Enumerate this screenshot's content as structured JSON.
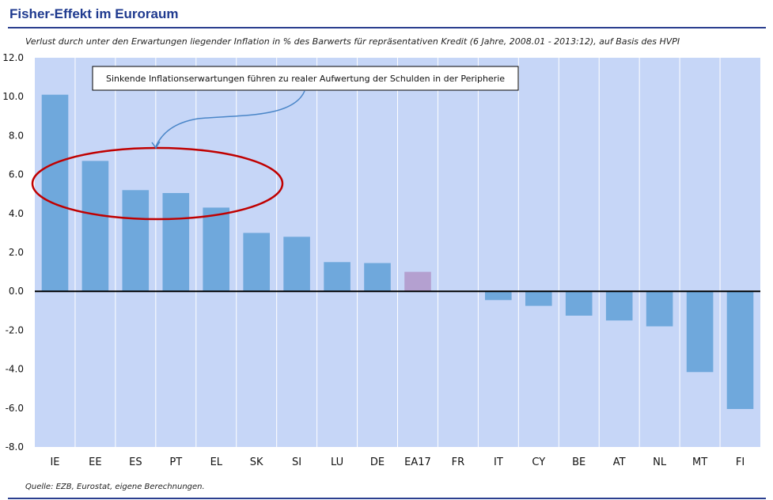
{
  "header": {
    "title": "Fisher-Effekt im Euroraum",
    "subtitle": "Verlust durch unter den Erwartungen liegender Inflation in % des Barwerts für repräsentativen Kredit (6 Jahre, 2008.01 - 2013:12), auf Basis des HVPI"
  },
  "footer": {
    "source": "Quelle: EZB, Eurostat, eigene Berechnungen."
  },
  "colors": {
    "plot_bg": "#c6d6f7",
    "bar": "#6fa8dc",
    "bar_highlight": "#b4a0d0",
    "zero_line": "#000000",
    "ellipse": "#c00000",
    "arrow": "#4a86c8",
    "title": "#1f3a8f"
  },
  "chart_data": {
    "type": "bar",
    "title": "Fisher-Effekt im Euroraum",
    "xlabel": "",
    "ylabel": "",
    "ylim": [
      -8.0,
      12.0
    ],
    "yticks": [
      "12.0",
      "10.0",
      "8.0",
      "6.0",
      "4.0",
      "2.0",
      "0.0",
      "-2.0",
      "-4.0",
      "-6.0",
      "-8.0"
    ],
    "ytick_values": [
      12,
      10,
      8,
      6,
      4,
      2,
      0,
      -2,
      -4,
      -6,
      -8
    ],
    "categories": [
      "IE",
      "EE",
      "ES",
      "PT",
      "EL",
      "SK",
      "SI",
      "LU",
      "DE",
      "EA17",
      "FR",
      "IT",
      "CY",
      "BE",
      "AT",
      "NL",
      "MT",
      "FI"
    ],
    "values": [
      10.1,
      6.7,
      5.2,
      5.05,
      4.3,
      3.0,
      2.8,
      1.5,
      1.45,
      1.0,
      0.0,
      -0.45,
      -0.75,
      -1.25,
      -1.5,
      -1.8,
      -4.15,
      -6.05
    ],
    "highlight_category": "EA17",
    "grid": "vertical",
    "annotation": "Sinkende Inflationserwartungen führen zu realer Aufwertung der Schulden in der Peripherie"
  }
}
